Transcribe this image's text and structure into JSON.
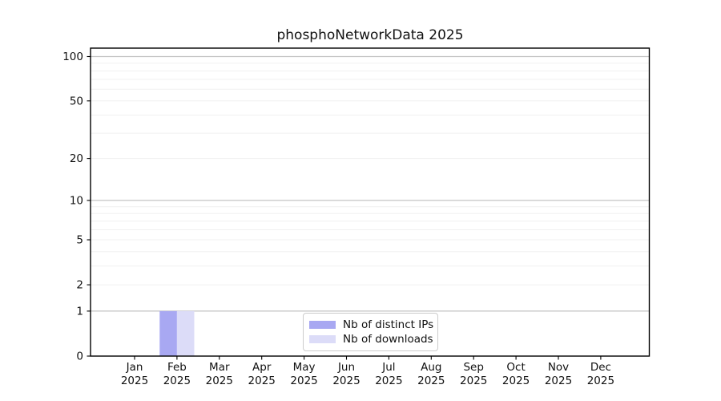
{
  "chart_data": {
    "type": "bar",
    "title": "phosphoNetworkData 2025",
    "xlabel": "",
    "ylabel": "",
    "year_label": "2025",
    "categories": [
      "Jan",
      "Feb",
      "Mar",
      "Apr",
      "May",
      "Jun",
      "Jul",
      "Aug",
      "Sep",
      "Oct",
      "Nov",
      "Dec"
    ],
    "series": [
      {
        "name": "Nb of distinct IPs",
        "color": "#a8a8f2",
        "values": [
          0,
          1,
          0,
          0,
          0,
          0,
          0,
          0,
          0,
          0,
          0,
          0
        ]
      },
      {
        "name": "Nb of downloads",
        "color": "#dcdcf8",
        "values": [
          0,
          1,
          0,
          0,
          0,
          0,
          0,
          0,
          0,
          0,
          0,
          0
        ]
      }
    ],
    "y_scale": "log10(value+1)",
    "ylim": [
      0,
      114
    ],
    "y_ticks": [
      0,
      1,
      2,
      5,
      10,
      20,
      50,
      100
    ],
    "y_tick_labels": [
      "0",
      "1",
      "2",
      "5",
      "10",
      "20",
      "50",
      "100"
    ],
    "y_minor_gridlines": [
      2,
      3,
      4,
      5,
      6,
      7,
      8,
      9,
      20,
      30,
      40,
      50,
      60,
      70,
      80,
      90
    ],
    "y_major_gridlines": [
      1,
      10,
      100
    ],
    "grid": "horizontal",
    "legend_position": "lower center",
    "colors": {
      "axis": "#000000",
      "major_grid": "#c4c4c4",
      "minor_grid": "#f0f0f0",
      "background": "#ffffff"
    }
  }
}
